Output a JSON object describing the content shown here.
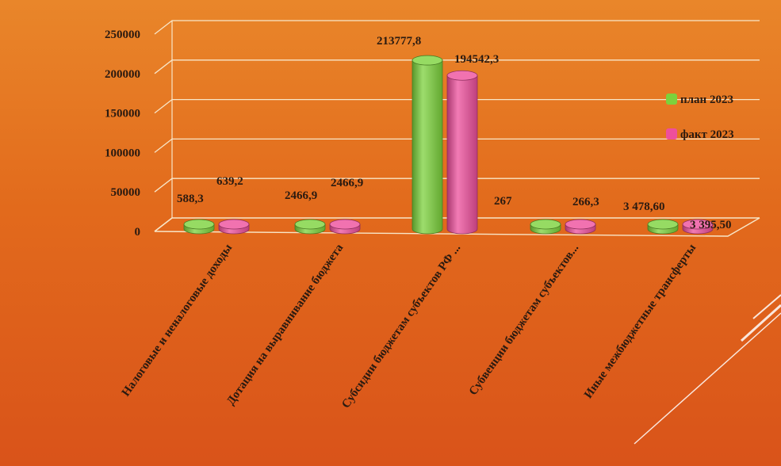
{
  "chart_data": {
    "type": "bar",
    "style": "3d-cylinder",
    "categories": [
      "Налоговые и неналоговые доходы",
      "Дотация на выравнивание бюджета",
      "Субсидии бюджетам субъектов РФ ...",
      "Субвенции бюджетам субъектов...",
      "Иные межбюджетные трансферты"
    ],
    "series": [
      {
        "name": "план 2023",
        "color": "#7cd23c",
        "values": [
          588.3,
          2466.9,
          213777.8,
          267,
          3478.6
        ],
        "labels": [
          "588,3",
          "2466,9",
          "213777,8",
          "267",
          "3 478,60"
        ]
      },
      {
        "name": "факт 2023",
        "color": "#ee4f9c",
        "values": [
          639.2,
          2466.9,
          194542.3,
          266.3,
          3395.5
        ],
        "labels": [
          "639,2",
          "2466,9",
          "194542,3",
          "266,3",
          "3 395,50"
        ]
      }
    ],
    "yticks": [
      "0",
      "50000",
      "100000",
      "150000",
      "200000",
      "250000"
    ],
    "ylim": [
      0,
      250000
    ],
    "grid": true,
    "legend_position": "right"
  }
}
